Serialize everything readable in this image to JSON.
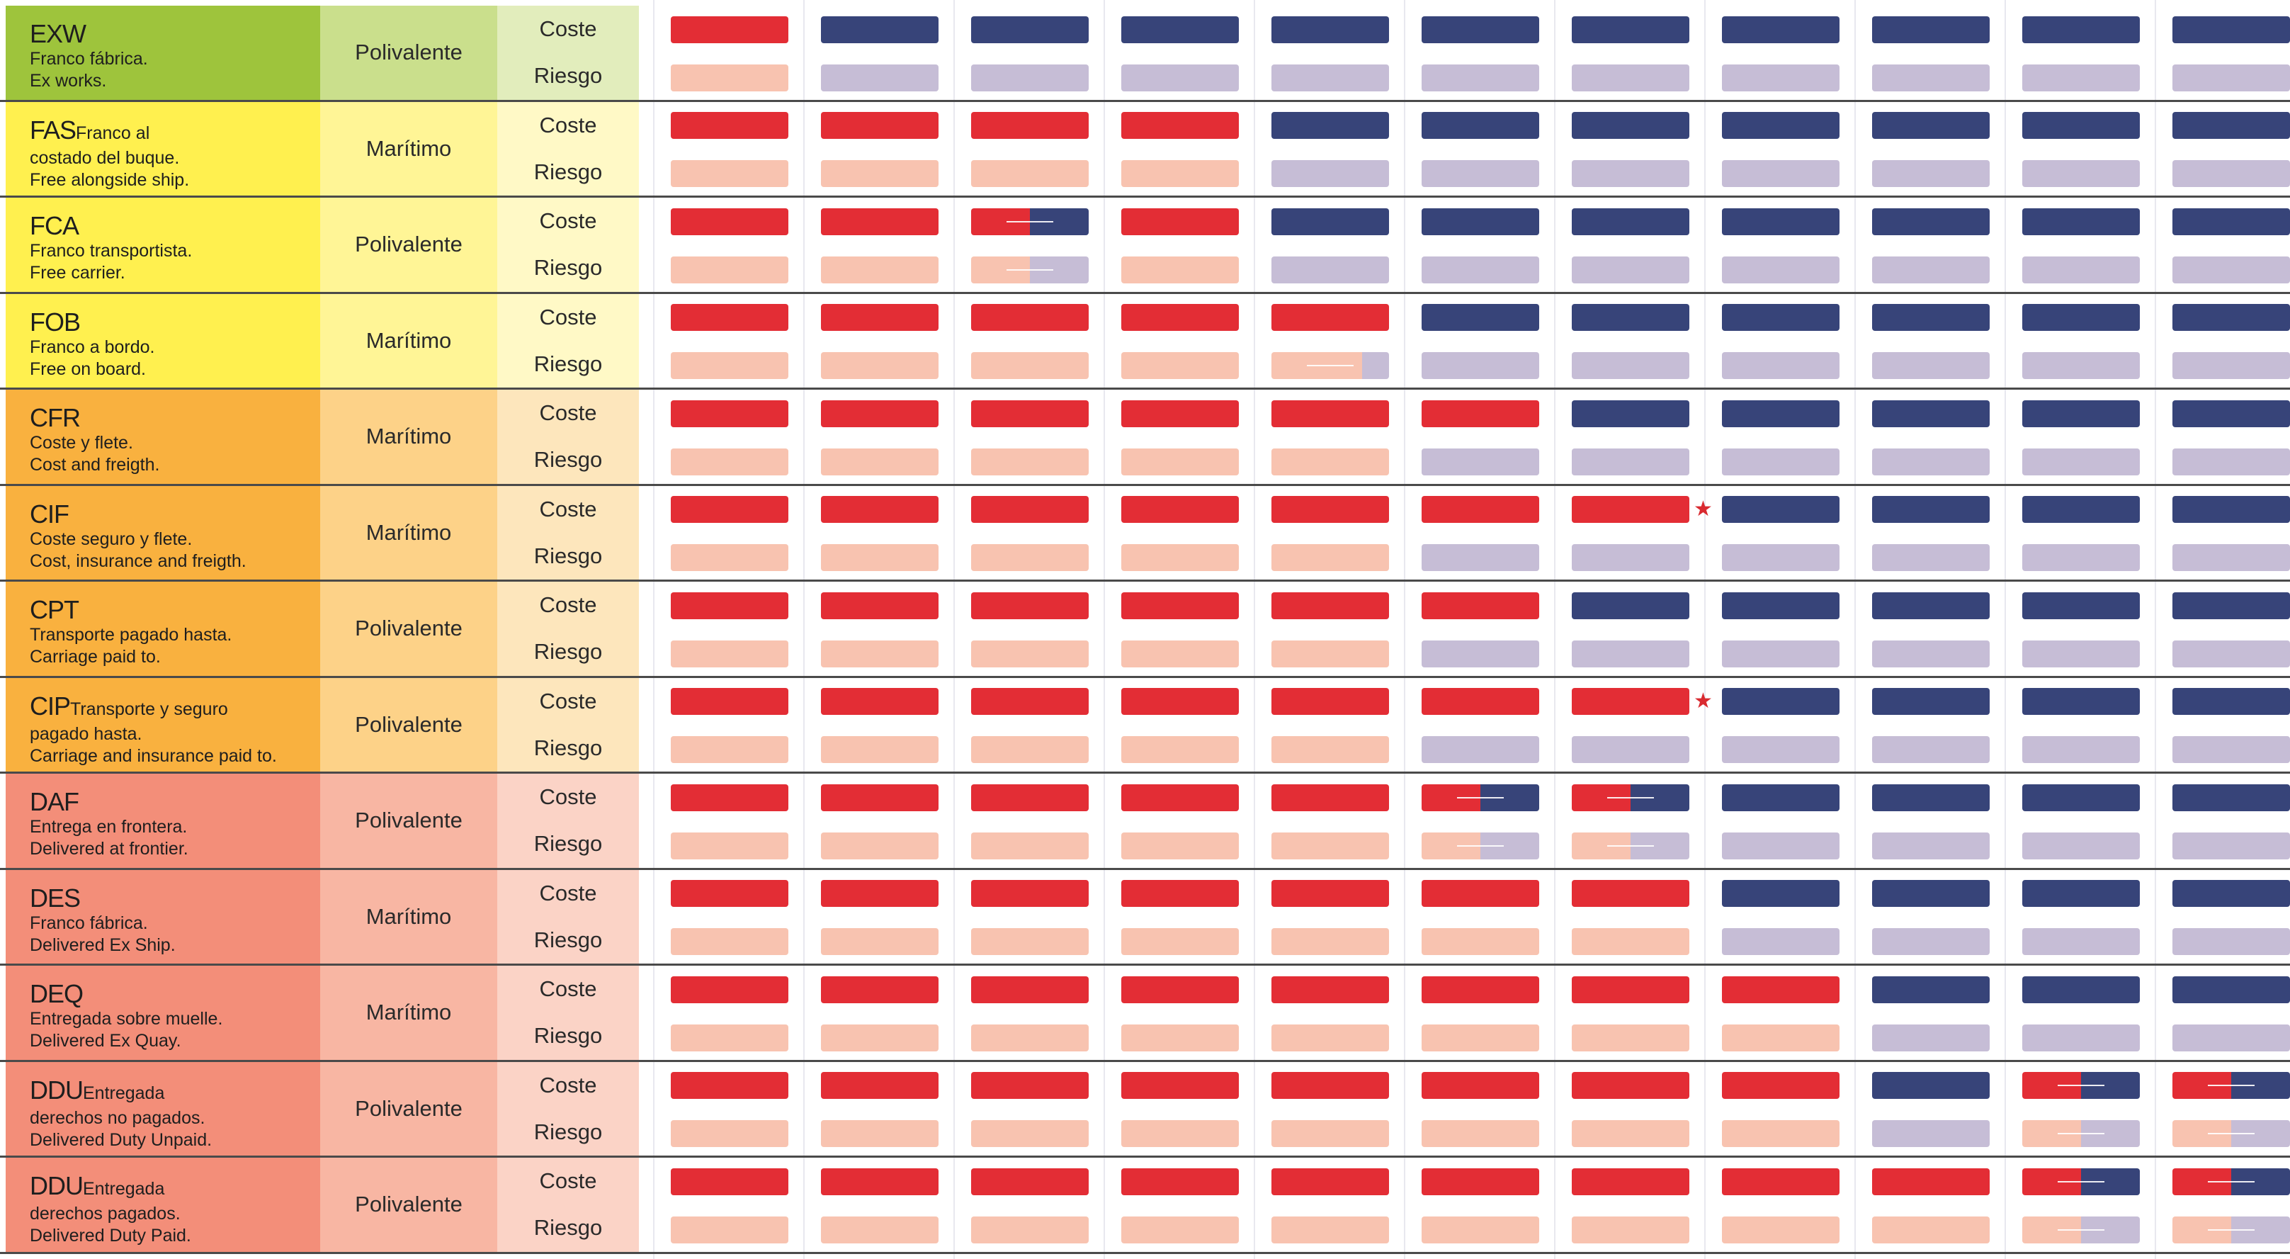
{
  "colors": {
    "seller_cost": "#e32d35",
    "seller_risk": "#f8c3b0",
    "buyer_cost": "#374479",
    "buyer_risk": "#c6bdd6"
  },
  "labels": {
    "cost": "Coste",
    "risk": "Riesgo"
  },
  "terms": [
    {
      "code": "EXW",
      "inline": "",
      "lines": [
        "Franco fábrica.",
        "Ex works."
      ],
      "mode": "Polivalente",
      "c1": "#9ec43c",
      "c2": "#cadf8c",
      "c3": "#e2edbc",
      "cost": [
        1,
        0,
        0,
        0,
        0,
        0,
        0,
        0,
        0,
        0,
        0
      ],
      "risk": [
        1,
        0,
        0,
        0,
        0,
        0,
        0,
        0,
        0,
        0,
        0
      ],
      "star": null
    },
    {
      "code": "FAS",
      "inline": "Franco al",
      "lines": [
        "costado del buque.",
        "Free alongside ship."
      ],
      "mode": "Marítimo",
      "c1": "#fff04f",
      "c2": "#fff596",
      "c3": "#fff9c6",
      "cost": [
        1,
        1,
        1,
        1,
        0,
        0,
        0,
        0,
        0,
        0,
        0
      ],
      "risk": [
        1,
        1,
        1,
        1,
        0,
        0,
        0,
        0,
        0,
        0,
        0
      ],
      "star": null
    },
    {
      "code": "FCA",
      "inline": "",
      "lines": [
        "Franco transportista.",
        "Free carrier."
      ],
      "mode": "Polivalente",
      "c1": "#fff04f",
      "c2": "#fff596",
      "c3": "#fff9c6",
      "cost": [
        1,
        1,
        0.5,
        1,
        0,
        0,
        0,
        0,
        0,
        0,
        0
      ],
      "risk": [
        1,
        1,
        0.5,
        1,
        0,
        0,
        0,
        0,
        0,
        0,
        0
      ],
      "star": null
    },
    {
      "code": "FOB",
      "inline": "",
      "lines": [
        "Franco a bordo.",
        "Free on board."
      ],
      "mode": "Marítimo",
      "c1": "#fff04f",
      "c2": "#fff596",
      "c3": "#fff9c6",
      "cost": [
        1,
        1,
        1,
        1,
        1,
        0,
        0,
        0,
        0,
        0,
        0
      ],
      "risk": [
        1,
        1,
        1,
        1,
        0.77,
        0,
        0,
        0,
        0,
        0,
        0
      ],
      "star": null
    },
    {
      "code": "CFR",
      "inline": "",
      "lines": [
        "Coste y flete.",
        "Cost and freigth."
      ],
      "mode": "Marítimo",
      "c1": "#f9b13f",
      "c2": "#fdd288",
      "c3": "#fde6bc",
      "cost": [
        1,
        1,
        1,
        1,
        1,
        1,
        0,
        0,
        0,
        0,
        0
      ],
      "risk": [
        1,
        1,
        1,
        1,
        1,
        0,
        0,
        0,
        0,
        0,
        0
      ],
      "star": null
    },
    {
      "code": "CIF",
      "inline": "",
      "lines": [
        "Coste seguro y flete.",
        "Cost, insurance and freigth."
      ],
      "mode": "Marítimo",
      "c1": "#f9b13f",
      "c2": "#fdd288",
      "c3": "#fde6bc",
      "cost": [
        1,
        1,
        1,
        1,
        1,
        1,
        1,
        0,
        0,
        0,
        0
      ],
      "risk": [
        1,
        1,
        1,
        1,
        1,
        0,
        0,
        0,
        0,
        0,
        0
      ],
      "star": 6
    },
    {
      "code": "CPT",
      "inline": "",
      "lines": [
        "Transporte pagado hasta.",
        "Carriage paid to."
      ],
      "mode": "Polivalente",
      "c1": "#f9b13f",
      "c2": "#fdd288",
      "c3": "#fde6bc",
      "cost": [
        1,
        1,
        1,
        1,
        1,
        1,
        0,
        0,
        0,
        0,
        0
      ],
      "risk": [
        1,
        1,
        1,
        1,
        1,
        0,
        0,
        0,
        0,
        0,
        0
      ],
      "star": null
    },
    {
      "code": "CIP",
      "inline": "Transporte y seguro",
      "lines": [
        "pagado hasta.",
        "Carriage and insurance paid to."
      ],
      "mode": "Polivalente",
      "c1": "#f9b13f",
      "c2": "#fdd288",
      "c3": "#fde6bc",
      "cost": [
        1,
        1,
        1,
        1,
        1,
        1,
        1,
        0,
        0,
        0,
        0
      ],
      "risk": [
        1,
        1,
        1,
        1,
        1,
        0,
        0,
        0,
        0,
        0,
        0
      ],
      "star": 6
    },
    {
      "code": "DAF",
      "inline": "",
      "lines": [
        "Entrega en frontera.",
        "Delivered at frontier."
      ],
      "mode": "Polivalente",
      "c1": "#f38e79",
      "c2": "#f8b6a3",
      "c3": "#fbd3c6",
      "cost": [
        1,
        1,
        1,
        1,
        1,
        0.5,
        0.5,
        0,
        0,
        0,
        0
      ],
      "risk": [
        1,
        1,
        1,
        1,
        1,
        0.5,
        0.5,
        0,
        0,
        0,
        0
      ],
      "star": null
    },
    {
      "code": "DES",
      "inline": "",
      "lines": [
        "Franco fábrica.",
        "Delivered Ex Ship."
      ],
      "mode": "Marítimo",
      "c1": "#f38e79",
      "c2": "#f8b6a3",
      "c3": "#fbd3c6",
      "cost": [
        1,
        1,
        1,
        1,
        1,
        1,
        1,
        0,
        0,
        0,
        0
      ],
      "risk": [
        1,
        1,
        1,
        1,
        1,
        1,
        1,
        0,
        0,
        0,
        0
      ],
      "star": null
    },
    {
      "code": "DEQ",
      "inline": "",
      "lines": [
        "Entregada sobre muelle.",
        "Delivered Ex Quay."
      ],
      "mode": "Marítimo",
      "c1": "#f38e79",
      "c2": "#f8b6a3",
      "c3": "#fbd3c6",
      "cost": [
        1,
        1,
        1,
        1,
        1,
        1,
        1,
        1,
        0,
        0,
        0
      ],
      "risk": [
        1,
        1,
        1,
        1,
        1,
        1,
        1,
        1,
        0,
        0,
        0
      ],
      "star": null
    },
    {
      "code": "DDU",
      "inline": "Entregada",
      "lines": [
        "derechos no pagados.",
        "Delivered Duty Unpaid."
      ],
      "mode": "Polivalente",
      "c1": "#f38e79",
      "c2": "#f8b6a3",
      "c3": "#fbd3c6",
      "cost": [
        1,
        1,
        1,
        1,
        1,
        1,
        1,
        1,
        0,
        0.5,
        0.5
      ],
      "risk": [
        1,
        1,
        1,
        1,
        1,
        1,
        1,
        1,
        0,
        0.5,
        0.5
      ],
      "star": null
    },
    {
      "code": "DDU",
      "inline": "Entregada",
      "lines": [
        "derechos pagados.",
        "Delivered Duty Paid."
      ],
      "mode": "Polivalente",
      "c1": "#f38e79",
      "c2": "#f8b6a3",
      "c3": "#fbd3c6",
      "cost": [
        1,
        1,
        1,
        1,
        1,
        1,
        1,
        1,
        1,
        0.5,
        0.5
      ],
      "risk": [
        1,
        1,
        1,
        1,
        1,
        1,
        1,
        1,
        1,
        0.5,
        0.5
      ],
      "star": null
    }
  ]
}
